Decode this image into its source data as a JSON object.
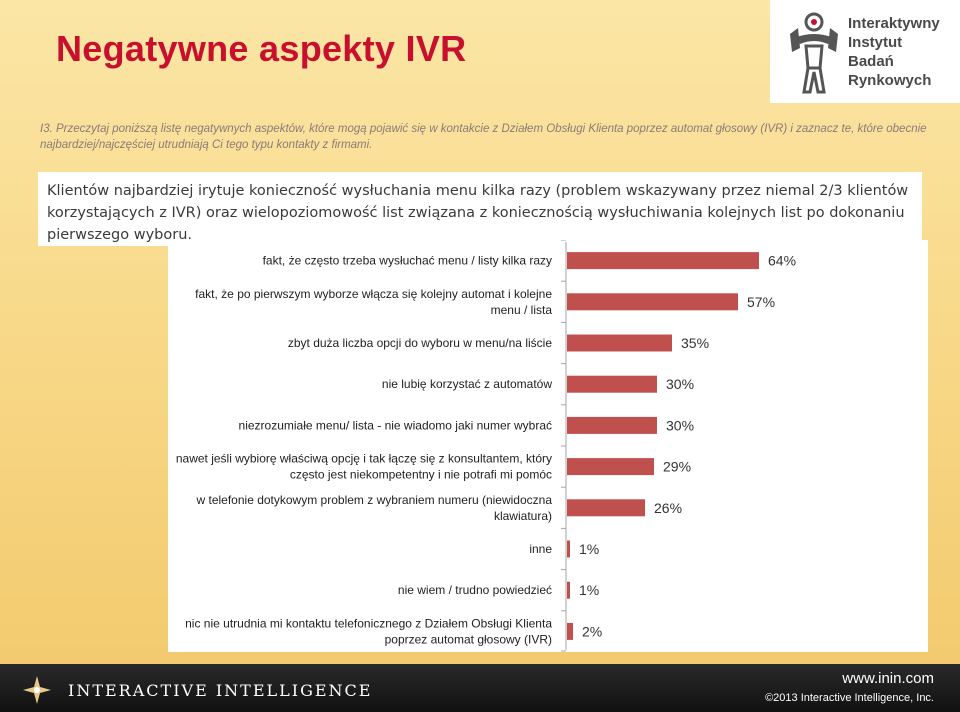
{
  "page": {
    "title": "Negatywne aspekty IVR",
    "question": "I3. Przeczytaj poniższą listę negatywnych aspektów, które mogą pojawić się w kontakcie z Działem Obsługi Klienta poprzez automat głosowy (IVR) i zaznacz te, które obecnie najbardziej/najczęściej utrudniają Ci tego typu kontakty z firmami.",
    "summary": "Klientów najbardziej irytuje konieczność wysłuchania menu kilka razy (problem wskazywany przez niemal 2/3 klientów korzystających z IVR) oraz wielopoziomowość list związana z koniecznością wysłuchiwania kolejnych list po dokonaniu pierwszego wyboru."
  },
  "logo": {
    "lines": [
      "Interaktywny",
      "Instytut",
      "Badań",
      "Rynkowych"
    ],
    "icon": "iibr-figure-logo"
  },
  "footer": {
    "brand": "Interactive Intelligence",
    "url": "www.inin.com",
    "copyright": "©2013 Interactive Intelligence, Inc."
  },
  "colors": {
    "title": "#c8102e",
    "bar": "#c0504d",
    "axis": "#a6a6a6"
  },
  "chart_data": {
    "type": "bar",
    "orientation": "horizontal",
    "title": "",
    "xlabel": "",
    "ylabel": "",
    "xlim": [
      0,
      100
    ],
    "grid": false,
    "legend": false,
    "value_suffix": "%",
    "categories": [
      [
        "fakt, że często trzeba wysłuchać menu / listy kilka razy"
      ],
      [
        "fakt, że po pierwszym wyborze włącza się kolejny automat i kolejne",
        "menu / lista"
      ],
      [
        "zbyt duża liczba opcji do wyboru w menu/na liście"
      ],
      [
        "nie lubię korzystać z automatów"
      ],
      [
        "niezrozumiałe menu/ lista - nie wiadomo jaki numer wybrać"
      ],
      [
        "nawet jeśli wybiorę właściwą opcję i tak łączę się z konsultantem, który",
        "często jest niekompetentny i nie potrafi mi pomóc"
      ],
      [
        "w telefonie dotykowym problem z wybraniem numeru (niewidoczna",
        "klawiatura)"
      ],
      [
        "inne"
      ],
      [
        "nie wiem / trudno powiedzieć"
      ],
      [
        "nic nie utrudnia mi kontaktu telefonicznego z Działem Obsługi Klienta",
        "poprzez automat głosowy (IVR)"
      ]
    ],
    "values": [
      64,
      57,
      35,
      30,
      30,
      29,
      26,
      1,
      1,
      2
    ],
    "labels": [
      "64%",
      "57%",
      "35%",
      "30%",
      "30%",
      "29%",
      "26%",
      "1%",
      "1%",
      "2%"
    ]
  }
}
